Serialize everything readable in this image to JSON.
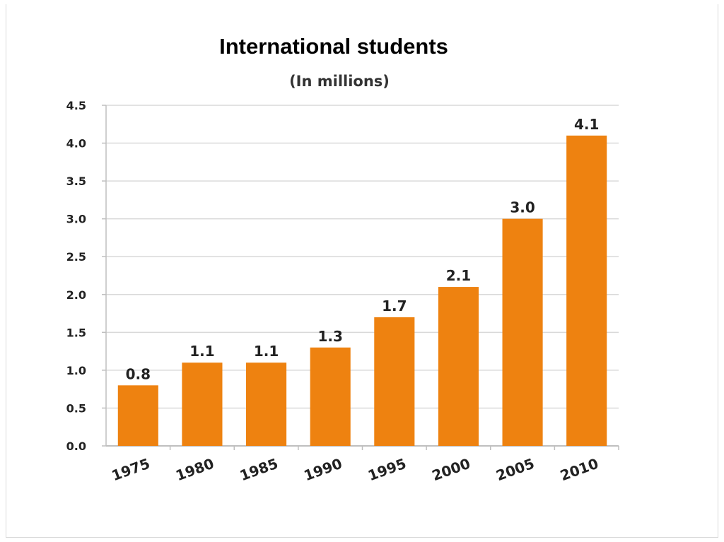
{
  "slide": {
    "title": "International students"
  },
  "chart_data": {
    "type": "bar",
    "subtitle": "(In millions)",
    "categories": [
      "1975",
      "1980",
      "1985",
      "1990",
      "1995",
      "2000",
      "2005",
      "2010"
    ],
    "values": [
      0.8,
      1.1,
      1.1,
      1.3,
      1.7,
      2.1,
      3.0,
      4.1
    ],
    "data_labels": [
      "0.8",
      "1.1",
      "1.1",
      "1.3",
      "1.7",
      "2.1",
      "3.0",
      "4.1"
    ],
    "y_ticks": [
      "0.0",
      "0.5",
      "1.0",
      "1.5",
      "2.0",
      "2.5",
      "3.0",
      "3.5",
      "4.0",
      "4.5"
    ],
    "ylim": [
      0,
      4.5
    ],
    "grid": true,
    "legend": "none",
    "bar_color": "#ee8210",
    "grid_color": "#d9d9d9"
  }
}
